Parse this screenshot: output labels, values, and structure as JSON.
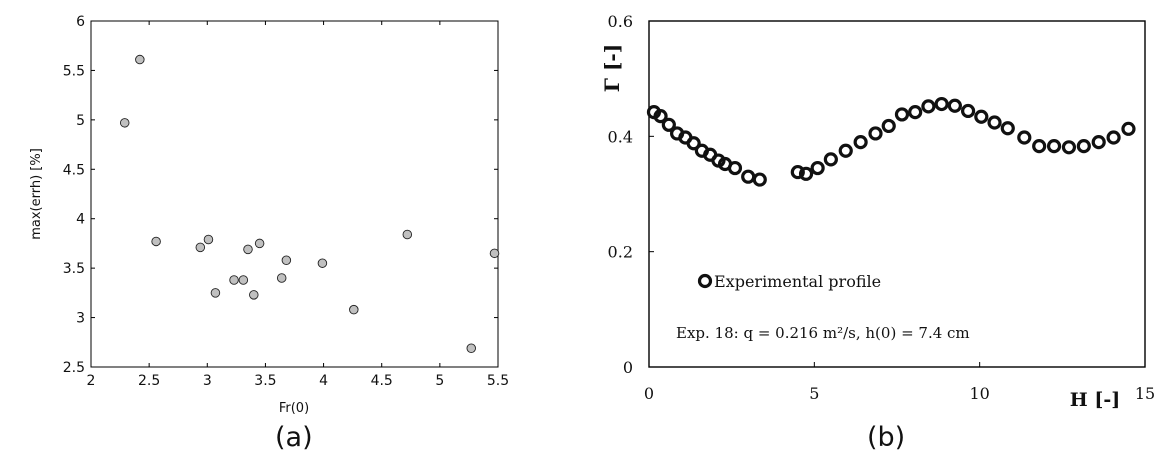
{
  "chart_data": [
    {
      "type": "scatter",
      "caption": "(a)",
      "xlabel": "Fr(0)",
      "ylabel": "max(errh) [%]",
      "xlim": [
        2,
        5.5
      ],
      "ylim": [
        2.5,
        6
      ],
      "xticks": [
        2,
        2.5,
        3,
        3.5,
        4,
        4.5,
        5,
        5.5
      ],
      "yticks": [
        2.5,
        3,
        3.5,
        4,
        4.5,
        5,
        5.5,
        6
      ],
      "xtick_labels": [
        "2",
        "2.5",
        "3",
        "3.5",
        "4",
        "4.5",
        "5",
        "5.5"
      ],
      "ytick_labels": [
        "2.5",
        "3",
        "3.5",
        "4",
        "4.5",
        "5",
        "5.5",
        "6"
      ],
      "marker_color": "#c0c0c0",
      "grid": false,
      "x": [
        2.29,
        2.42,
        2.56,
        2.94,
        3.01,
        3.07,
        3.23,
        3.31,
        3.35,
        3.4,
        3.45,
        3.64,
        3.68,
        3.99,
        4.26,
        4.72,
        5.27,
        5.47
      ],
      "y": [
        4.97,
        5.61,
        3.77,
        3.71,
        3.79,
        3.25,
        3.38,
        3.38,
        3.69,
        3.23,
        3.75,
        3.4,
        3.58,
        3.55,
        3.08,
        3.84,
        2.69,
        3.65
      ]
    },
    {
      "type": "scatter",
      "caption": "(b)",
      "xlabel": "H [-]",
      "ylabel": "Γ [-]",
      "xlim": [
        0,
        15
      ],
      "ylim": [
        0,
        0.6
      ],
      "xticks": [
        0,
        5,
        10,
        15
      ],
      "yticks": [
        0,
        0.2,
        0.4,
        0.6
      ],
      "xtick_labels": [
        "0",
        "5",
        "10",
        "15"
      ],
      "ytick_labels": [
        "0",
        "0.2",
        "0.4",
        "0.6"
      ],
      "grid": false,
      "legend": "Experimental profile",
      "annotation": "Exp. 18: q = 0.216 m²/s, h(0) = 7.4 cm",
      "x": [
        0.15,
        0.35,
        0.6,
        0.85,
        1.1,
        1.35,
        1.6,
        1.85,
        2.1,
        2.3,
        2.6,
        3.0,
        3.35,
        4.5,
        4.75,
        5.1,
        5.5,
        5.95,
        6.4,
        6.85,
        7.25,
        7.65,
        8.05,
        8.45,
        8.85,
        9.25,
        9.65,
        10.05,
        10.45,
        10.85,
        11.35,
        11.8,
        12.25,
        12.7,
        13.15,
        13.6,
        14.05,
        14.5
      ],
      "y": [
        0.442,
        0.435,
        0.42,
        0.405,
        0.398,
        0.388,
        0.375,
        0.368,
        0.358,
        0.352,
        0.345,
        0.33,
        0.325,
        0.338,
        0.335,
        0.345,
        0.36,
        0.375,
        0.39,
        0.405,
        0.418,
        0.438,
        0.442,
        0.452,
        0.456,
        0.453,
        0.444,
        0.434,
        0.424,
        0.414,
        0.398,
        0.383,
        0.383,
        0.381,
        0.383,
        0.39,
        0.398,
        0.413
      ]
    }
  ]
}
